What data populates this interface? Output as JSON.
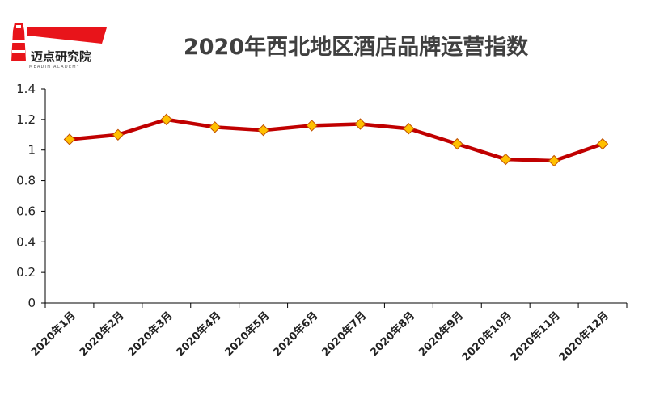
{
  "logo": {
    "text": "迈点研究院",
    "subtext": "MEADIN ACADEMY"
  },
  "colors": {
    "line": "#C00000",
    "marker_fill": "#FFC000",
    "marker_stroke": "#C05000",
    "axis": "#000000",
    "logo_red": "#E8141A",
    "title": "#404040"
  },
  "chart_data": {
    "type": "line",
    "title": "2020年西北地区酒店品牌运营指数",
    "xlabel": "",
    "ylabel": "",
    "categories": [
      "2020年1月",
      "2020年2月",
      "2020年3月",
      "2020年4月",
      "2020年5月",
      "2020年6月",
      "2020年7月",
      "2020年8月",
      "2020年9月",
      "2020年10月",
      "2020年11月",
      "2020年12月"
    ],
    "values": [
      1.07,
      1.1,
      1.2,
      1.15,
      1.13,
      1.16,
      1.17,
      1.14,
      1.04,
      0.94,
      0.93,
      1.04
    ],
    "ylim": [
      0,
      1.4
    ],
    "yticks": [
      0,
      0.2,
      0.4,
      0.6,
      0.8,
      1,
      1.2,
      1.4
    ],
    "ytick_labels": [
      "0",
      "0.2",
      "0.4",
      "0.6",
      "0.8",
      "1",
      "1.2",
      "1.4"
    ],
    "grid": false,
    "legend": "none"
  }
}
